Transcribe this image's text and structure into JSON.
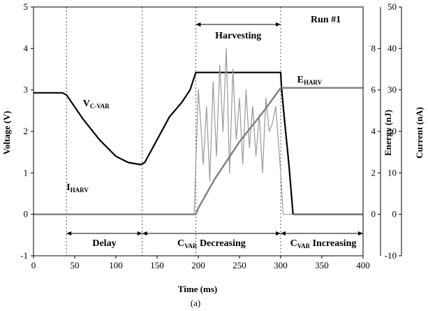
{
  "chart_data": {
    "type": "line",
    "run_label": "Run #1",
    "caption": "(a)",
    "xlabel": "Time (ms)",
    "ylabel_left": "Voltage (V)",
    "ylabel_energy": "Energy (nJ)",
    "ylabel_current": "Current (nA)",
    "xlim": [
      0,
      400
    ],
    "ylim_left": [
      -1,
      5
    ],
    "ylim_energy": [
      -2,
      10
    ],
    "ylim_current": [
      -10,
      50
    ],
    "x_ticks": [
      "0",
      "50",
      "100",
      "150",
      "200",
      "250",
      "300",
      "350",
      "400"
    ],
    "y_left_ticks": [
      "-1",
      "0",
      "1",
      "2",
      "3",
      "4",
      "5"
    ],
    "y_energy_ticks": [
      "0",
      "2",
      "4",
      "6",
      "8"
    ],
    "y_current_ticks": [
      "-10",
      "0",
      "10",
      "20",
      "30",
      "40",
      "50"
    ],
    "phase_boundaries_ms": [
      40,
      132,
      197,
      300
    ],
    "annotations": {
      "harvesting": "Harvesting",
      "delay": "Delay",
      "c_var_decreasing": {
        "main": "C",
        "sub": "VAR",
        "rest": " Decreasing"
      },
      "c_var_increasing": {
        "main": "C",
        "sub": "VAR",
        "rest": " Increasing"
      },
      "v_c_var": {
        "main": "V",
        "sub": "C-VAR"
      },
      "i_harv": {
        "main": "I",
        "sub": "HARV"
      },
      "e_harv": {
        "main": "E",
        "sub": "HARV"
      }
    },
    "series": [
      {
        "name": "V C-VAR",
        "axis": "left",
        "color": "#000000",
        "x": [
          0,
          35,
          40,
          60,
          80,
          100,
          115,
          130,
          135,
          150,
          165,
          180,
          190,
          197,
          200,
          250,
          300,
          301,
          305,
          310,
          315,
          400
        ],
        "y": [
          2.93,
          2.93,
          2.88,
          2.3,
          1.8,
          1.4,
          1.25,
          1.2,
          1.25,
          1.8,
          2.35,
          2.7,
          3.0,
          3.42,
          3.42,
          3.42,
          3.42,
          3.05,
          2.2,
          1.2,
          0.0,
          0.0
        ]
      },
      {
        "name": "I HARV",
        "axis": "current",
        "color": "#999999",
        "x": [
          0,
          195,
          198,
          200,
          203,
          206,
          210,
          214,
          218,
          222,
          226,
          230,
          234,
          238,
          242,
          246,
          250,
          254,
          258,
          262,
          266,
          270,
          274,
          278,
          282,
          286,
          290,
          294,
          297,
          300,
          303,
          400
        ],
        "y": [
          0,
          0,
          18,
          30,
          22,
          12,
          26,
          8,
          32,
          14,
          36,
          20,
          40,
          10,
          35,
          18,
          28,
          12,
          30,
          16,
          26,
          14,
          24,
          10,
          28,
          20,
          22,
          26,
          18,
          10,
          0,
          0
        ]
      },
      {
        "name": "E HARV",
        "axis": "energy",
        "color": "#7f7f7f",
        "x": [
          0,
          197,
          200,
          220,
          250,
          280,
          300,
          400
        ],
        "y": [
          0,
          0,
          0.3,
          1.7,
          3.5,
          5.0,
          6.1,
          6.1
        ]
      }
    ]
  }
}
